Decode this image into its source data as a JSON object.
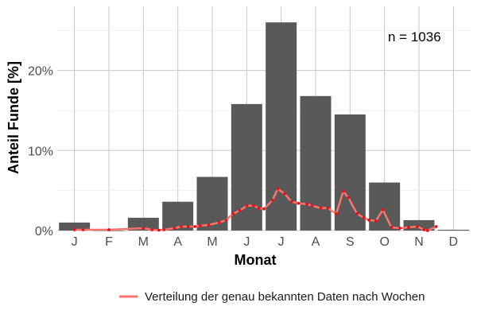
{
  "chart_data": {
    "type": "bar",
    "xlabel": "Monat",
    "ylabel": "Anteil Funde [%]",
    "categories": [
      "J",
      "F",
      "M",
      "A",
      "M",
      "J",
      "J",
      "A",
      "S",
      "O",
      "N",
      "D"
    ],
    "values": [
      1.0,
      0.0,
      1.6,
      3.6,
      6.7,
      15.8,
      26.0,
      16.8,
      14.5,
      6.0,
      1.3,
      0.1
    ],
    "ylim": [
      0,
      28
    ],
    "yticks": [
      0,
      10,
      20
    ],
    "ytick_labels": [
      "0%",
      "10%",
      "20%"
    ],
    "grid": true,
    "bar_color": "#595959",
    "annotation": "n = 1036",
    "weekly_series": {
      "name": "Verteilung der genau bekannten Daten nach Wochen",
      "color": "#f8766d",
      "point_color": "#e8111b",
      "x_month": [
        0.0,
        0.25,
        1.0,
        2.0,
        2.25,
        2.45,
        2.6,
        2.9,
        3.1,
        3.3,
        3.5,
        3.65,
        3.9,
        4.2,
        4.4,
        4.6,
        4.8,
        5.0,
        5.2,
        5.35,
        5.5,
        5.75,
        5.9,
        6.1,
        6.3,
        6.5,
        6.75,
        6.9,
        7.15,
        7.35,
        7.6,
        7.8,
        7.95,
        8.2,
        8.4,
        8.55,
        8.75,
        8.95,
        9.2,
        9.45,
        9.7,
        9.95,
        10.15,
        10.25,
        10.5
      ],
      "y_percent": [
        0.1,
        0.1,
        0.1,
        0.3,
        0.1,
        0.05,
        0.1,
        0.3,
        0.5,
        0.5,
        0.5,
        0.6,
        0.7,
        1.0,
        1.3,
        2.1,
        2.5,
        3.1,
        3.1,
        2.8,
        2.7,
        3.8,
        5.2,
        4.6,
        3.6,
        3.4,
        3.3,
        3.1,
        2.8,
        2.8,
        2.1,
        4.9,
        4.1,
        2.1,
        1.6,
        1.3,
        1.2,
        2.6,
        0.4,
        0.3,
        0.4,
        0.5,
        0.1,
        0.0,
        0.5
      ]
    }
  }
}
